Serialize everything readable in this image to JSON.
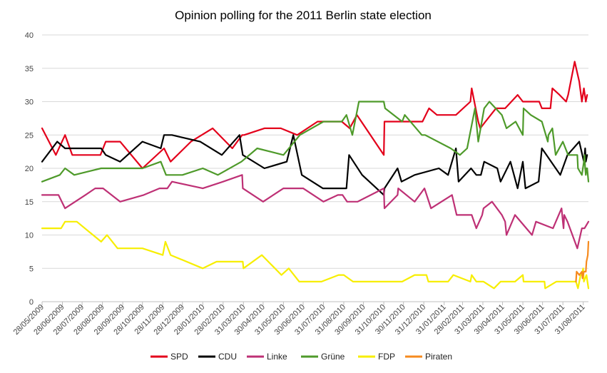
{
  "chart_data": {
    "type": "line",
    "title": "Opinion polling for the 2011 Berlin state election",
    "xlabel": "",
    "ylabel": "",
    "ylim": [
      0,
      40
    ],
    "yticks": [
      0,
      5,
      10,
      15,
      20,
      25,
      30,
      35,
      40
    ],
    "grid": true,
    "legend": "bottom",
    "xlim": [
      "2009-05-28",
      "2011-09-08"
    ],
    "xtick_labels": [
      "28/05/2009",
      "28/06/2009",
      "28/07/2009",
      "28/08/2009",
      "28/09/2009",
      "28/10/2009",
      "28/11/2009",
      "28/12/2009",
      "28/01/2010",
      "28/02/2010",
      "31/03/2010",
      "30/04/2010",
      "31/05/2010",
      "30/06/2010",
      "31/07/2010",
      "31/08/2010",
      "30/09/2010",
      "31/10/2010",
      "30/11/2010",
      "31/12/2010",
      "31/01/2011",
      "28/02/2011",
      "31/03/2011",
      "30/04/2011",
      "31/05/2011",
      "30/06/2011",
      "31/07/2011",
      "31/08/2011"
    ],
    "xtick_dates": [
      "2009-05-28",
      "2009-06-28",
      "2009-07-28",
      "2009-08-28",
      "2009-09-28",
      "2009-10-28",
      "2009-11-28",
      "2009-12-28",
      "2010-01-28",
      "2010-02-28",
      "2010-03-31",
      "2010-04-30",
      "2010-05-31",
      "2010-06-30",
      "2010-07-31",
      "2010-08-31",
      "2010-09-30",
      "2010-10-31",
      "2010-11-30",
      "2010-12-31",
      "2011-01-31",
      "2011-02-28",
      "2011-03-31",
      "2011-04-30",
      "2011-05-31",
      "2011-06-30",
      "2011-07-31",
      "2011-08-31"
    ],
    "series": [
      {
        "name": "SPD",
        "color": "#e3001b",
        "x": [
          "2009-05-28",
          "2009-06-18",
          "2009-07-02",
          "2009-07-13",
          "2009-08-08",
          "2009-08-25",
          "2009-09-02",
          "2009-09-24",
          "2009-10-28",
          "2009-11-30",
          "2009-12-10",
          "2010-01-10",
          "2010-02-12",
          "2010-03-14",
          "2010-03-29",
          "2010-04-01",
          "2010-05-02",
          "2010-05-27",
          "2010-06-21",
          "2010-07-22",
          "2010-08-22",
          "2010-08-28",
          "2010-09-09",
          "2010-09-20",
          "2010-10-31",
          "2010-11-01",
          "2010-11-22",
          "2010-12-01",
          "2010-12-29",
          "2011-01-08",
          "2011-01-20",
          "2011-02-06",
          "2011-02-18",
          "2011-03-12",
          "2011-03-14",
          "2011-03-24",
          "2011-03-27",
          "2011-04-04",
          "2011-04-20",
          "2011-05-04",
          "2011-05-23",
          "2011-05-31",
          "2011-06-25",
          "2011-06-29",
          "2011-07-12",
          "2011-07-15",
          "2011-07-26",
          "2011-08-05",
          "2011-08-08",
          "2011-08-18",
          "2011-08-25",
          "2011-08-29",
          "2011-09-01",
          "2011-09-04",
          "2011-09-06"
        ],
        "y": [
          26,
          22,
          25,
          22,
          22,
          22,
          24,
          24,
          20,
          23,
          21,
          24,
          26,
          23,
          25,
          25,
          26,
          26,
          25,
          27,
          27,
          27,
          26,
          28,
          22,
          27,
          27,
          27,
          27,
          29,
          28,
          28,
          28,
          30,
          32,
          27,
          26,
          27,
          29,
          29,
          31,
          30,
          30,
          29,
          29,
          32,
          31,
          30,
          31,
          36,
          33,
          30,
          32,
          30,
          31
        ]
      },
      {
        "name": "CDU",
        "color": "#000000",
        "x": [
          "2009-05-28",
          "2009-06-20",
          "2009-07-02",
          "2009-07-30",
          "2009-08-26",
          "2009-09-02",
          "2009-09-24",
          "2009-10-28",
          "2009-11-25",
          "2009-11-30",
          "2009-12-12",
          "2010-01-24",
          "2010-02-26",
          "2010-03-25",
          "2010-03-30",
          "2010-05-02",
          "2010-06-05",
          "2010-06-15",
          "2010-06-28",
          "2010-07-30",
          "2010-08-27",
          "2010-09-04",
          "2010-09-08",
          "2010-09-28",
          "2010-10-31",
          "2010-11-01",
          "2010-11-21",
          "2010-11-27",
          "2010-12-17",
          "2011-01-23",
          "2011-02-06",
          "2011-02-18",
          "2011-02-22",
          "2011-03-13",
          "2011-03-21",
          "2011-03-28",
          "2011-04-02",
          "2011-04-22",
          "2011-04-27",
          "2011-05-12",
          "2011-05-23",
          "2011-05-31",
          "2011-06-04",
          "2011-06-24",
          "2011-06-29",
          "2011-07-27",
          "2011-08-07",
          "2011-08-25",
          "2011-09-01",
          "2011-09-03",
          "2011-09-04",
          "2011-09-06"
        ],
        "y": [
          21,
          24,
          23,
          23,
          23,
          22,
          21,
          24,
          23,
          25,
          25,
          24,
          22,
          25,
          22,
          20,
          21,
          25,
          19,
          17,
          17,
          17,
          22,
          19,
          16,
          17,
          20,
          18,
          19,
          20,
          19,
          23,
          18,
          20,
          19,
          19,
          21,
          20,
          18,
          21,
          17,
          21,
          17,
          18,
          23,
          19,
          22,
          24,
          21,
          23,
          21,
          22
        ]
      },
      {
        "name": "Linke",
        "color": "#be3075",
        "x": [
          "2009-05-28",
          "2009-06-22",
          "2009-07-02",
          "2009-08-02",
          "2009-08-17",
          "2009-08-29",
          "2009-09-24",
          "2009-10-30",
          "2009-11-23",
          "2009-12-05",
          "2009-12-12",
          "2010-01-28",
          "2010-02-28",
          "2010-03-29",
          "2010-03-30",
          "2010-04-30",
          "2010-05-31",
          "2010-06-30",
          "2010-07-31",
          "2010-08-22",
          "2010-08-29",
          "2010-09-05",
          "2010-09-21",
          "2010-10-31",
          "2010-11-01",
          "2010-11-21",
          "2010-11-22",
          "2010-12-17",
          "2011-01-01",
          "2011-01-11",
          "2011-02-12",
          "2011-02-19",
          "2011-03-02",
          "2011-03-09",
          "2011-03-14",
          "2011-03-21",
          "2011-03-30",
          "2011-04-01",
          "2011-04-14",
          "2011-04-29",
          "2011-05-04",
          "2011-05-06",
          "2011-05-19",
          "2011-06-14",
          "2011-06-20",
          "2011-07-16",
          "2011-07-29",
          "2011-07-30",
          "2011-07-31",
          "2011-08-01",
          "2011-08-02",
          "2011-08-07",
          "2011-08-22",
          "2011-08-29",
          "2011-09-01",
          "2011-09-02",
          "2011-09-08"
        ],
        "y": [
          16,
          16,
          14,
          16,
          17,
          17,
          15,
          16,
          17,
          17,
          18,
          17,
          18,
          19,
          17,
          15,
          17,
          17,
          15,
          16,
          16,
          15,
          15,
          17,
          14,
          16,
          17,
          15,
          17,
          14,
          16,
          13,
          13,
          13,
          13,
          11,
          13,
          14,
          15,
          13,
          12,
          10,
          13,
          10,
          12,
          11,
          14,
          13,
          12,
          11,
          13,
          12,
          8,
          11,
          11,
          11,
          12
        ]
      },
      {
        "name": "Grüne",
        "color": "#4e9a2a",
        "x": [
          "2009-05-28",
          "2009-06-24",
          "2009-07-02",
          "2009-07-16",
          "2009-08-26",
          "2009-09-28",
          "2009-10-28",
          "2009-11-25",
          "2009-12-03",
          "2009-12-28",
          "2010-01-28",
          "2010-02-20",
          "2010-03-28",
          "2010-04-21",
          "2010-05-31",
          "2010-06-25",
          "2010-07-31",
          "2010-08-21",
          "2010-08-28",
          "2010-09-04",
          "2010-09-13",
          "2010-09-23",
          "2010-10-31",
          "2010-11-02",
          "2010-11-28",
          "2010-12-02",
          "2010-12-28",
          "2011-01-02",
          "2011-02-10",
          "2011-02-24",
          "2011-03-07",
          "2011-03-19",
          "2011-03-24",
          "2011-04-02",
          "2011-04-10",
          "2011-04-29",
          "2011-05-06",
          "2011-05-20",
          "2011-05-31",
          "2011-06-01",
          "2011-06-12",
          "2011-06-29",
          "2011-07-08",
          "2011-07-09",
          "2011-07-15",
          "2011-07-20",
          "2011-07-31",
          "2011-08-08",
          "2011-08-22",
          "2011-08-23",
          "2011-08-29",
          "2011-09-01",
          "2011-09-02",
          "2011-09-03",
          "2011-09-04",
          "2011-09-05",
          "2011-09-06",
          "2011-09-08"
        ],
        "y": [
          18,
          19,
          20,
          19,
          20,
          20,
          20,
          21,
          19,
          19,
          20,
          19,
          21,
          23,
          22,
          25,
          27,
          27,
          27,
          28,
          25,
          30,
          30,
          29,
          27,
          28,
          25,
          25,
          23,
          22,
          23,
          29,
          24,
          29,
          30,
          28,
          26,
          27,
          25,
          29,
          28,
          27,
          24,
          25,
          26,
          22,
          24,
          22,
          22,
          20,
          19,
          21,
          22,
          20,
          19,
          20,
          20,
          18
        ]
      },
      {
        "name": "FDP",
        "color": "#f7ee00",
        "x": [
          "2009-05-28",
          "2009-06-26",
          "2009-07-02",
          "2009-07-20",
          "2009-08-26",
          "2009-09-04",
          "2009-09-20",
          "2009-10-28",
          "2009-11-28",
          "2009-12-02",
          "2009-12-10",
          "2010-01-28",
          "2010-02-18",
          "2010-03-30",
          "2010-03-31",
          "2010-04-28",
          "2010-05-28",
          "2010-06-08",
          "2010-06-24",
          "2010-07-28",
          "2010-08-23",
          "2010-08-31",
          "2010-09-14",
          "2010-10-31",
          "2010-11-28",
          "2010-12-17",
          "2011-01-04",
          "2011-01-07",
          "2011-02-06",
          "2011-02-14",
          "2011-03-12",
          "2011-03-14",
          "2011-03-21",
          "2011-04-01",
          "2011-04-17",
          "2011-04-27",
          "2011-05-19",
          "2011-05-31",
          "2011-06-01",
          "2011-06-21",
          "2011-07-02",
          "2011-07-03",
          "2011-07-04",
          "2011-07-21",
          "2011-07-22",
          "2011-07-27",
          "2011-07-29",
          "2011-07-30",
          "2011-08-04",
          "2011-08-20",
          "2011-08-23",
          "2011-08-27",
          "2011-08-29",
          "2011-08-31",
          "2011-09-01",
          "2011-09-05",
          "2011-09-08"
        ],
        "y": [
          11,
          11,
          12,
          12,
          9,
          10,
          8,
          8,
          7,
          9,
          7,
          5,
          6,
          6,
          5,
          7,
          4,
          5,
          3,
          3,
          4,
          4,
          3,
          3,
          3,
          4,
          4,
          3,
          3,
          4,
          3,
          4,
          3,
          3,
          2,
          3,
          3,
          4,
          3,
          3,
          3,
          3,
          2,
          3,
          3,
          3,
          3,
          3,
          3,
          3,
          2,
          4,
          4,
          5,
          3,
          4,
          2
        ]
      },
      {
        "name": "Piraten",
        "color": "#f68a1e",
        "x": [
          "2011-08-20",
          "2011-08-21",
          "2011-08-25",
          "2011-08-29",
          "2011-08-30",
          "2011-09-01",
          "2011-09-04",
          "2011-09-05",
          "2011-09-06",
          "2011-09-07",
          "2011-09-08"
        ],
        "y": [
          3,
          4.5,
          4,
          4.5,
          3.5,
          4.5,
          4.5,
          6,
          6.5,
          7,
          9
        ]
      }
    ]
  }
}
